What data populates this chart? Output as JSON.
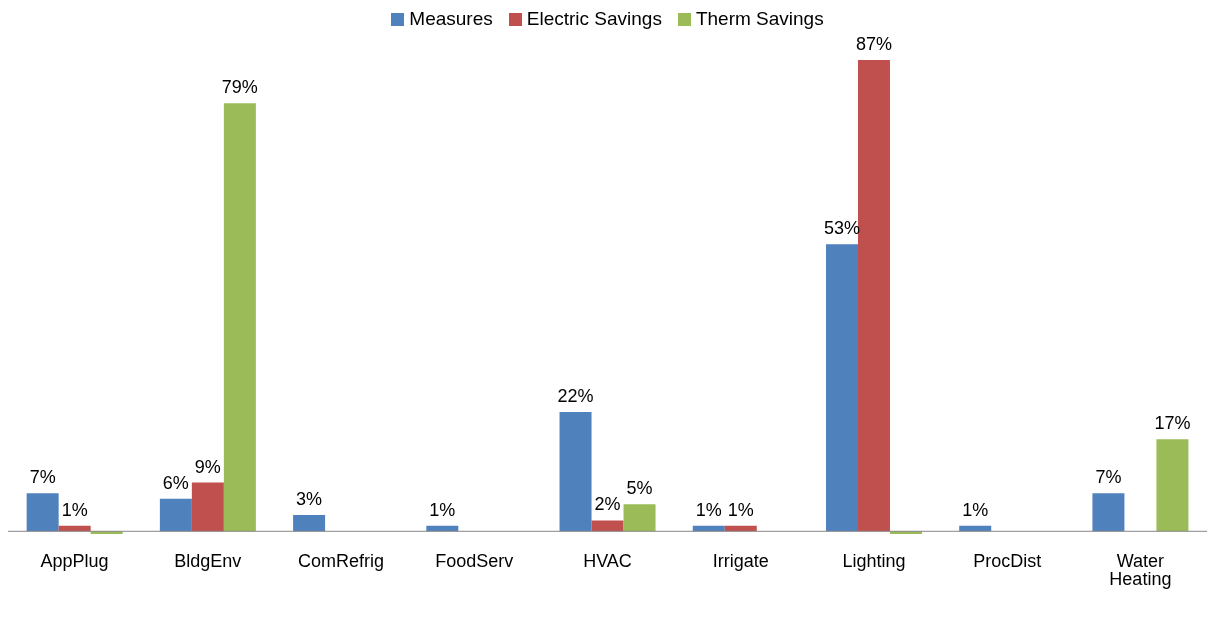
{
  "chart_data": {
    "type": "bar",
    "categories": [
      "AppPlug",
      "BldgEnv",
      "ComRefrig",
      "FoodServ",
      "HVAC",
      "Irrigate",
      "Lighting",
      "ProcDist",
      "Water Heating"
    ],
    "series": [
      {
        "name": "Measures",
        "color": "#4f81bd",
        "values": [
          7,
          6,
          3,
          1,
          22,
          1,
          53,
          1,
          7
        ],
        "value_labels": [
          "7%",
          "6%",
          "3%",
          "1%",
          "22%",
          "1%",
          "53%",
          "1%",
          "7%"
        ]
      },
      {
        "name": "Electric Savings",
        "color": "#c0504d",
        "values": [
          1,
          9,
          null,
          null,
          2,
          1,
          87,
          null,
          null
        ],
        "value_labels": [
          "1%",
          "9%",
          null,
          null,
          "2%",
          "1%",
          "87%",
          null,
          null
        ]
      },
      {
        "name": "Therm Savings",
        "color": "#9bbb59",
        "values": [
          -0.5,
          79,
          null,
          null,
          5,
          null,
          -0.5,
          null,
          17
        ],
        "value_labels": [
          null,
          "79%",
          null,
          null,
          "5%",
          null,
          null,
          null,
          "17%"
        ]
      }
    ],
    "legend": "top"
  }
}
